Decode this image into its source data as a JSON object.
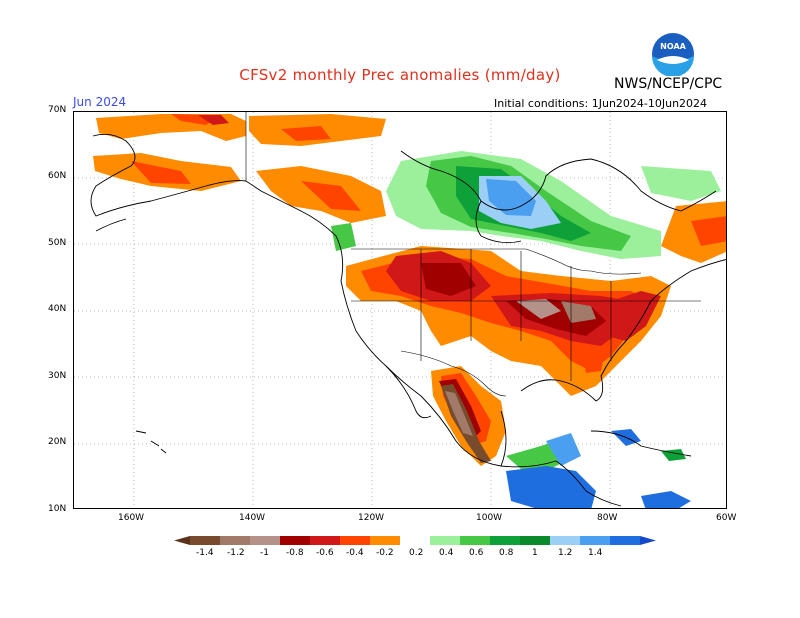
{
  "header": {
    "title": "CFSv2 monthly Prec anomalies (mm/day)",
    "agency": "NWS/NCEP/CPC",
    "logo_text": "NOAA",
    "month": "Jun 2024",
    "initial_conditions": "Initial conditions: 1Jun2024-10Jun2024"
  },
  "axes": {
    "lat_labels": [
      "70N",
      "60N",
      "50N",
      "40N",
      "30N",
      "20N",
      "10N"
    ],
    "lon_labels": [
      "160W",
      "140W",
      "120W",
      "100W",
      "80W",
      "60W"
    ]
  },
  "colorbar": {
    "labels": [
      "-1.4",
      "-1.2",
      "-1",
      "-0.8",
      "-0.6",
      "-0.4",
      "-0.2",
      "0.2",
      "0.4",
      "0.6",
      "0.8",
      "1",
      "1.2",
      "1.4"
    ],
    "colors": [
      "#784b2c",
      "#a17a6a",
      "#b59289",
      "#a00000",
      "#d01818",
      "#ff4400",
      "#ff8c00",
      "#ffffff",
      "#9cf09c",
      "#46c846",
      "#0ea13a",
      "#0a8a2a",
      "#9ccff5",
      "#4b9ff0",
      "#1e6ee0"
    ],
    "low_end_color": "#5a3219",
    "high_end_color": "#1448c8"
  },
  "colors": {
    "title": "#e0301e",
    "month": "#3a4ee0",
    "coast": "#000000",
    "grid": "#999999"
  }
}
